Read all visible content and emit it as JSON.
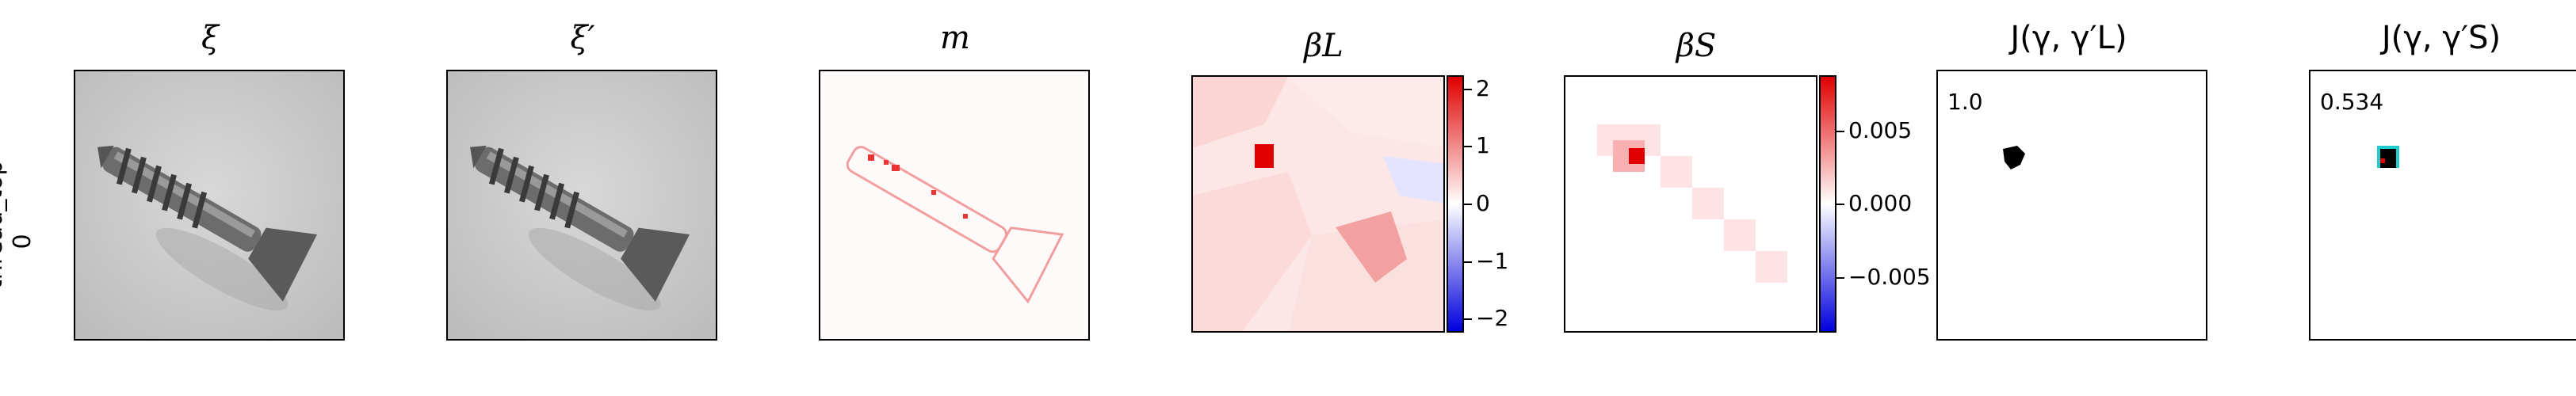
{
  "row": {
    "label_line1": "thread_top",
    "label_line2": "0"
  },
  "panels": [
    {
      "title": "ξ"
    },
    {
      "title": "ξ′"
    },
    {
      "title": "m"
    },
    {
      "title": "βL"
    },
    {
      "title": "βS"
    },
    {
      "title": "J(γ, γ′L)"
    },
    {
      "title": "J(γ, γ′S)"
    }
  ],
  "scores": {
    "large": "1.0",
    "small": "0.534"
  },
  "colorbar_L": {
    "ticks": [
      "2",
      "1",
      "0",
      "−1",
      "−2"
    ]
  },
  "colorbar_S": {
    "ticks": [
      "0.005",
      "0.000",
      "−0.005"
    ]
  },
  "colors": {
    "positive": "#e00000",
    "negative": "#0000dd"
  }
}
